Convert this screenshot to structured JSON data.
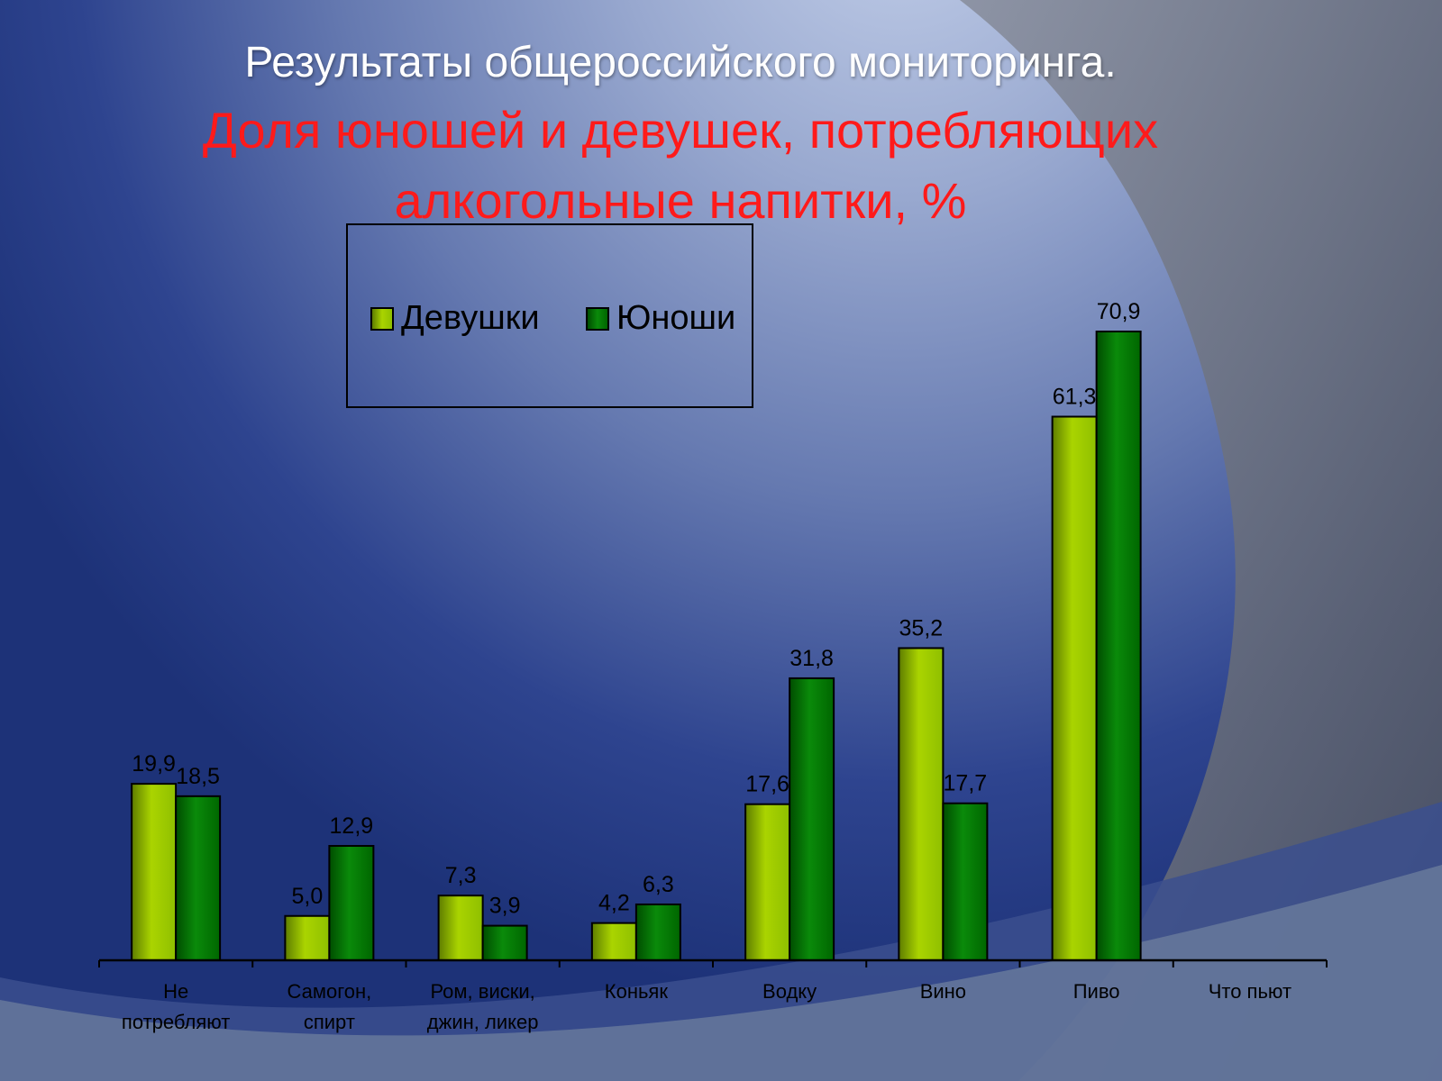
{
  "title": {
    "line1": "Результаты общероссийского мониторинга.",
    "line2": "Доля юношей и девушек, потребляющих",
    "line3": "алкогольные напитки, %"
  },
  "legend": {
    "items": [
      {
        "label": "Девушки",
        "color": "#99cc00"
      },
      {
        "label": "Юноши",
        "color": "#008000"
      }
    ]
  },
  "chart_data": {
    "type": "bar",
    "title": "Результаты общероссийского мониторинга. Доля юношей и девушек, потребляющих алкогольные напитки, %",
    "xlabel": "",
    "ylabel": "",
    "ylim": [
      0,
      70.9
    ],
    "grid": false,
    "legend_position": "top-left",
    "categories": [
      [
        "Не",
        "потребляют"
      ],
      [
        "Самогон,",
        "спирт"
      ],
      [
        "Ром, виски,",
        "джин, ликер"
      ],
      [
        "Коньяк"
      ],
      [
        "Водку"
      ],
      [
        "Вино"
      ],
      [
        "Пиво"
      ],
      [
        "Что пьют"
      ]
    ],
    "series": [
      {
        "name": "Девушки",
        "color": "#99cc00",
        "values": [
          19.9,
          5.0,
          7.3,
          4.2,
          17.6,
          35.2,
          61.3,
          null
        ],
        "labels": [
          "19,9",
          "5,0",
          "7,3",
          "4,2",
          "17,6",
          "35,2",
          "61,3",
          ""
        ]
      },
      {
        "name": "Юноши",
        "color": "#008000",
        "values": [
          18.5,
          12.9,
          3.9,
          6.3,
          31.8,
          17.7,
          70.9,
          null
        ],
        "labels": [
          "18,5",
          "12,9",
          "3,9",
          "6,3",
          "31,8",
          "17,7",
          "70,9",
          ""
        ]
      }
    ]
  }
}
